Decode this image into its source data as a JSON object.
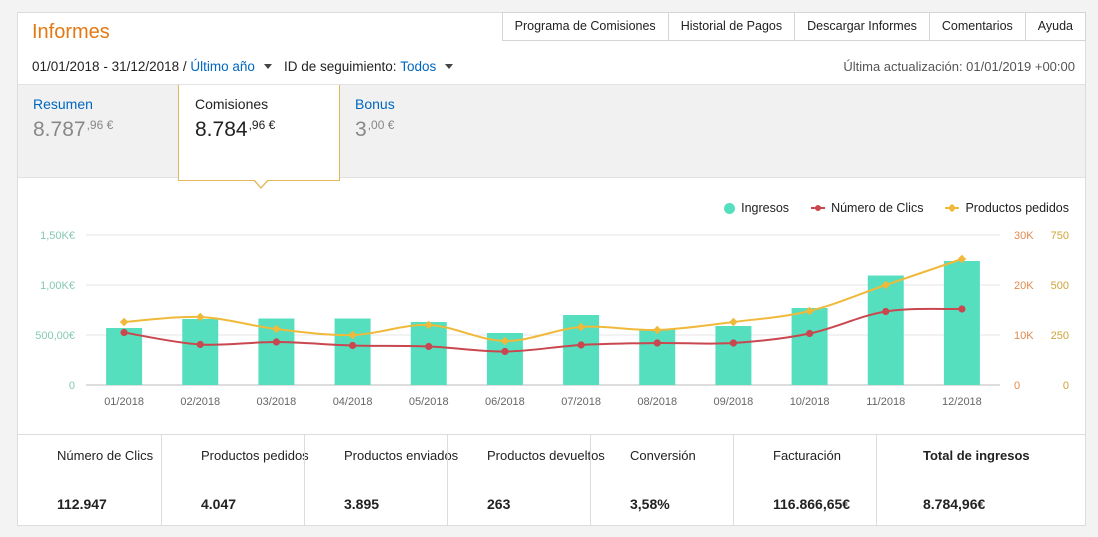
{
  "header": {
    "title": "Informes"
  },
  "topnav": [
    "Programa de Comisiones",
    "Historial de Pagos",
    "Descargar Informes",
    "Comentarios",
    "Ayuda"
  ],
  "filter": {
    "date_range": "01/01/2018 - 31/12/2018 /",
    "period": "Último año",
    "tracking_label": "ID de seguimiento:",
    "tracking_value": "Todos"
  },
  "updated": "Última actualización: 01/01/2019 +00:00",
  "summary": [
    {
      "label": "Resumen",
      "int": "8.787",
      "dec": ",96 €",
      "active": false
    },
    {
      "label": "Comisiones",
      "int": "8.784",
      "dec": ",96 €",
      "active": true
    },
    {
      "label": "Bonus",
      "int": "3",
      "dec": ",00 €",
      "active": false
    }
  ],
  "legend": [
    {
      "name": "Ingresos",
      "color": "#55dfbf"
    },
    {
      "name": "Número de Clics",
      "color": "#c9474f"
    },
    {
      "name": "Productos pedidos",
      "color": "#f0b93a"
    }
  ],
  "chart_data": {
    "type": "bar",
    "categories": [
      "01/2018",
      "02/2018",
      "03/2018",
      "04/2018",
      "05/2018",
      "06/2018",
      "07/2018",
      "08/2018",
      "09/2018",
      "10/2018",
      "11/2018",
      "12/2018"
    ],
    "y_left_ticks": [
      "0",
      "500,00€",
      "1,00K€",
      "1,50K€"
    ],
    "y_right1_ticks": [
      "0",
      "10K",
      "20K",
      "30K"
    ],
    "y_right2_ticks": [
      "0",
      "250",
      "500",
      "750"
    ],
    "ylim_left": [
      0,
      1500
    ],
    "ylim_right1": [
      0,
      30000
    ],
    "ylim_right2": [
      0,
      750
    ],
    "series": [
      {
        "name": "Ingresos",
        "type": "bar",
        "axis": "left",
        "values": [
          570,
          660,
          665,
          665,
          630,
          520,
          700,
          555,
          590,
          770,
          1095,
          1240
        ]
      },
      {
        "name": "Número de Clics",
        "type": "line",
        "axis": "right1",
        "values": [
          10500,
          8100,
          8600,
          7900,
          7700,
          6700,
          8000,
          8400,
          8400,
          10300,
          14700,
          15200
        ]
      },
      {
        "name": "Productos pedidos",
        "type": "line",
        "axis": "right2",
        "values": [
          315,
          340,
          280,
          250,
          300,
          220,
          290,
          275,
          315,
          370,
          500,
          630
        ]
      }
    ],
    "grid": true,
    "legend_position": "top-right"
  },
  "stats": [
    {
      "label": "Número de Clics",
      "value": "112.947"
    },
    {
      "label": "Productos pedidos",
      "value": "4.047"
    },
    {
      "label": "Productos enviados",
      "value": "3.895"
    },
    {
      "label": "Productos devueltos",
      "value": "263"
    },
    {
      "label": "Conversión",
      "value": "3,58%"
    },
    {
      "label": "Facturación",
      "value": "116.866,65€"
    },
    {
      "label": "Total de ingresos",
      "value": "8.784,96€"
    }
  ]
}
